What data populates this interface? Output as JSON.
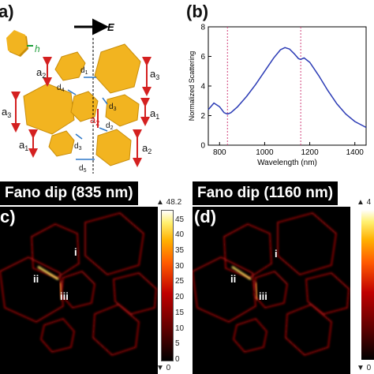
{
  "panel_a": {
    "label": "a)",
    "field_label": "E",
    "labels": {
      "h": "h",
      "a1": "a",
      "a1_sub": "1",
      "a2": "a",
      "a2_sub": "2",
      "a3": "a",
      "a3_sub": "3",
      "d1": "d",
      "d1_sub": "1",
      "d2": "d",
      "d2_sub": "2",
      "d3": "d",
      "d3_sub": "3",
      "d4": "d",
      "d4_sub": "4",
      "d5": "d",
      "d5_sub": "5"
    },
    "colors": {
      "gold": "#F2B420",
      "gold_dark": "#C98E0A",
      "arrow_red": "#D42020",
      "arrow_blue": "#2E78C8",
      "arrow_green": "#1E9E3A"
    }
  },
  "panel_b": {
    "label": "(b)"
  },
  "panel_c": {
    "label": "c)",
    "title": "Fano dip (835 nm)",
    "roman": [
      "i",
      "ii",
      "iii"
    ],
    "cb_top": "▲ 48.2",
    "cb_bottom": "▼ 0",
    "cb_ticks": [
      "45",
      "40",
      "35",
      "30",
      "25",
      "20",
      "15",
      "10",
      "5",
      "0"
    ]
  },
  "panel_d": {
    "label": "(d)",
    "title": "Fano dip (1160 nm)",
    "roman": [
      "i",
      "ii",
      "iii"
    ],
    "cb_top": "▲ 4",
    "cb_bottom": "▼ 0"
  },
  "chart_data": {
    "type": "line",
    "xlabel": "Wavelength (nm)",
    "ylabel": "Normalized Scattering",
    "xlim": [
      750,
      1450
    ],
    "ylim": [
      0,
      8
    ],
    "xticks": [
      800,
      1000,
      1200,
      1400
    ],
    "yticks": [
      0,
      2,
      4,
      6,
      8
    ],
    "grid": false,
    "dashed_markers_x": [
      835,
      1160
    ],
    "line_color": "#2B3BB5",
    "marker_color": "#D0407A",
    "x": [
      750,
      775,
      800,
      820,
      835,
      850,
      880,
      920,
      960,
      1000,
      1040,
      1070,
      1090,
      1110,
      1130,
      1150,
      1160,
      1175,
      1200,
      1240,
      1280,
      1320,
      1360,
      1400,
      1450
    ],
    "y": [
      2.4,
      2.85,
      2.6,
      2.2,
      2.1,
      2.2,
      2.6,
      3.3,
      4.1,
      5.0,
      5.9,
      6.45,
      6.6,
      6.5,
      6.2,
      5.85,
      5.8,
      5.9,
      5.6,
      4.7,
      3.7,
      2.8,
      2.1,
      1.6,
      1.2
    ]
  }
}
